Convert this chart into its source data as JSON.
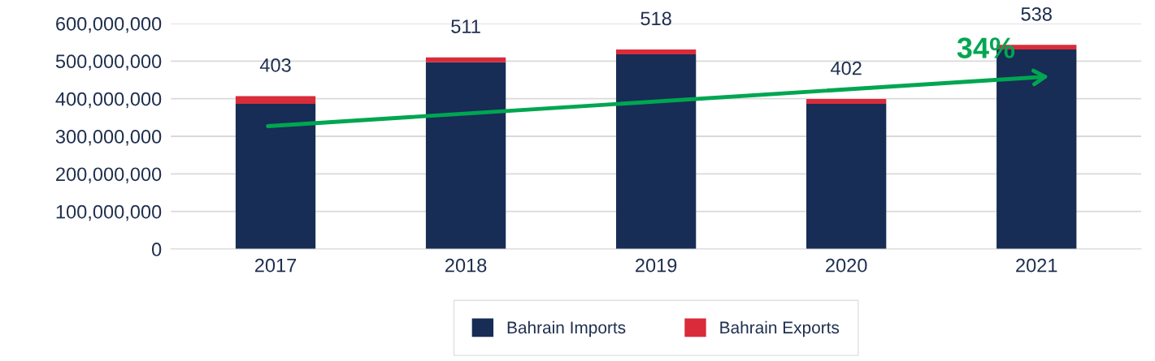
{
  "chart_data": {
    "type": "bar",
    "stacked": true,
    "categories": [
      "2017",
      "2018",
      "2019",
      "2020",
      "2021"
    ],
    "series": [
      {
        "name": "Bahrain Imports",
        "color": "#172d55",
        "values": [
          386000000,
          497000000,
          518000000,
          386000000,
          531000000
        ]
      },
      {
        "name": "Bahrain Exports",
        "color": "#d92b3a",
        "values": [
          21000000,
          13000000,
          13000000,
          13000000,
          12000000
        ]
      }
    ],
    "annotations": [
      {
        "text": "403",
        "x": "2017",
        "y": 407000000
      },
      {
        "text": "511",
        "x": "2018",
        "y": 510000000
      },
      {
        "text": "518",
        "x": "2019",
        "y": 531000000
      },
      {
        "text": "402",
        "x": "2020",
        "y": 399000000
      },
      {
        "text": "538",
        "x": "2021",
        "y": 543000000
      },
      "34%"
    ],
    "ylim": [
      0,
      600000000
    ],
    "yticks": [
      {
        "value": 0,
        "label": "0"
      },
      {
        "value": 100000000,
        "label": "100,000,000"
      },
      {
        "value": 200000000,
        "label": "200,000,000"
      },
      {
        "value": 300000000,
        "label": "300,000,000"
      },
      {
        "value": 400000000,
        "label": "400,000,000"
      },
      {
        "value": 500000000,
        "label": "500,000,000"
      },
      {
        "value": 600000000,
        "label": "600,000,000"
      }
    ],
    "grid": "y",
    "legend": "bottom"
  }
}
